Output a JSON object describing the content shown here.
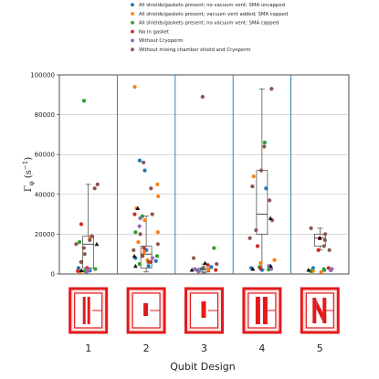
{
  "chart_data": {
    "type": "scatter",
    "ylabel": "Γ_φ (s⁻¹)",
    "ylabel_main": "Γ",
    "ylabel_sub": "φ",
    "ylabel_rest": "(s",
    "ylabel_sup": "−1",
    "ylabel_close": ")",
    "xlabel": "Qubit Design",
    "ylim": [
      0,
      100000
    ],
    "yticks": [
      0,
      20000,
      40000,
      60000,
      80000,
      100000
    ],
    "ytick_labels": [
      "0",
      "20000",
      "40000",
      "60000",
      "80000",
      "100000"
    ],
    "grid": true,
    "legend_position": "top-left",
    "categories": [
      "1",
      "2",
      "3",
      "4",
      "5"
    ],
    "series": [
      {
        "name": "All shields/gaskets present; no vacuum vent; SMA uncapped",
        "color": "#1f77b4",
        "marker": "circle",
        "points": [
          {
            "x": 1,
            "y": 2500
          },
          {
            "x": 1,
            "y": 1800
          },
          {
            "x": 1,
            "y": 3000
          },
          {
            "x": 2,
            "y": 57000
          },
          {
            "x": 2,
            "y": 52000
          },
          {
            "x": 2,
            "y": 12000
          },
          {
            "x": 2,
            "y": 8000
          },
          {
            "x": 2,
            "y": 6500
          },
          {
            "x": 2,
            "y": 4000
          },
          {
            "x": 3,
            "y": 2500
          },
          {
            "x": 3,
            "y": 1500
          },
          {
            "x": 3,
            "y": 3500
          },
          {
            "x": 4,
            "y": 43000
          },
          {
            "x": 4,
            "y": 3000
          },
          {
            "x": 4,
            "y": 2000
          },
          {
            "x": 5,
            "y": 3000
          },
          {
            "x": 5,
            "y": 2000
          },
          {
            "x": 5,
            "y": 1500
          }
        ]
      },
      {
        "name": "All shields/gaskets present; vacuum vent added; SMA capped",
        "color": "#ff7f0e",
        "marker": "circle",
        "points": [
          {
            "x": 1,
            "y": 18000
          },
          {
            "x": 1,
            "y": 2000
          },
          {
            "x": 1,
            "y": 1000
          },
          {
            "x": 2,
            "y": 94000
          },
          {
            "x": 2,
            "y": 45000
          },
          {
            "x": 2,
            "y": 39000
          },
          {
            "x": 2,
            "y": 33000
          },
          {
            "x": 2,
            "y": 27000
          },
          {
            "x": 2,
            "y": 21000
          },
          {
            "x": 2,
            "y": 16000
          },
          {
            "x": 2,
            "y": 11000
          },
          {
            "x": 2,
            "y": 7000
          },
          {
            "x": 3,
            "y": 2000
          },
          {
            "x": 3,
            "y": 1200
          },
          {
            "x": 4,
            "y": 49000
          },
          {
            "x": 4,
            "y": 7000
          },
          {
            "x": 4,
            "y": 5500
          },
          {
            "x": 5,
            "y": 1500
          },
          {
            "x": 5,
            "y": 1000
          }
        ]
      },
      {
        "name": "All shields/gaskets present; no vacuum vent; SMA capped",
        "color": "#2ca02c",
        "marker": "circle",
        "points": [
          {
            "x": 1,
            "y": 87000
          },
          {
            "x": 1,
            "y": 16000
          },
          {
            "x": 1,
            "y": 2500
          },
          {
            "x": 1,
            "y": 1500
          },
          {
            "x": 2,
            "y": 29000
          },
          {
            "x": 2,
            "y": 21000
          },
          {
            "x": 2,
            "y": 9000
          },
          {
            "x": 2,
            "y": 5000
          },
          {
            "x": 3,
            "y": 13000
          },
          {
            "x": 3,
            "y": 3000
          },
          {
            "x": 3,
            "y": 1800
          },
          {
            "x": 4,
            "y": 66000
          },
          {
            "x": 4,
            "y": 3500
          },
          {
            "x": 4,
            "y": 2200
          },
          {
            "x": 5,
            "y": 2500
          },
          {
            "x": 5,
            "y": 1500
          }
        ]
      },
      {
        "name": "No In gasket",
        "color": "#d62728",
        "marker": "circle",
        "points": [
          {
            "x": 1,
            "y": 25000
          },
          {
            "x": 1,
            "y": 3000
          },
          {
            "x": 1,
            "y": 1500
          },
          {
            "x": 2,
            "y": 30000
          },
          {
            "x": 2,
            "y": 13000
          },
          {
            "x": 2,
            "y": 6000
          },
          {
            "x": 3,
            "y": 4500
          },
          {
            "x": 3,
            "y": 2000
          },
          {
            "x": 4,
            "y": 14000
          },
          {
            "x": 4,
            "y": 3000
          },
          {
            "x": 5,
            "y": 18000
          },
          {
            "x": 5,
            "y": 12000
          },
          {
            "x": 5,
            "y": 3000
          }
        ]
      },
      {
        "name": "Without Cryoperm",
        "color": "#9467bd",
        "marker": "circle",
        "points": [
          {
            "x": 1,
            "y": 2000
          },
          {
            "x": 1,
            "y": 1000
          },
          {
            "x": 2,
            "y": 28000
          },
          {
            "x": 2,
            "y": 24000
          },
          {
            "x": 2,
            "y": 8000
          },
          {
            "x": 3,
            "y": 2500
          },
          {
            "x": 3,
            "y": 1500
          },
          {
            "x": 4,
            "y": 4000
          },
          {
            "x": 4,
            "y": 2500
          },
          {
            "x": 5,
            "y": 2500
          },
          {
            "x": 5,
            "y": 1800
          }
        ]
      },
      {
        "name": "Without mixing chamber shield and Cryoperm",
        "color": "#8c564b",
        "marker": "circle",
        "points": [
          {
            "x": 1,
            "y": 45000
          },
          {
            "x": 1,
            "y": 43000
          },
          {
            "x": 1,
            "y": 19000
          },
          {
            "x": 1,
            "y": 17000
          },
          {
            "x": 1,
            "y": 15000
          },
          {
            "x": 1,
            "y": 13000
          },
          {
            "x": 1,
            "y": 10000
          },
          {
            "x": 1,
            "y": 6000
          },
          {
            "x": 2,
            "y": 56000
          },
          {
            "x": 2,
            "y": 43000
          },
          {
            "x": 2,
            "y": 30000
          },
          {
            "x": 2,
            "y": 20000
          },
          {
            "x": 2,
            "y": 15000
          },
          {
            "x": 2,
            "y": 12000
          },
          {
            "x": 2,
            "y": 9000
          },
          {
            "x": 2,
            "y": 6000
          },
          {
            "x": 3,
            "y": 89000
          },
          {
            "x": 3,
            "y": 8000
          },
          {
            "x": 3,
            "y": 5000
          },
          {
            "x": 3,
            "y": 3000
          },
          {
            "x": 4,
            "y": 93000
          },
          {
            "x": 4,
            "y": 64000
          },
          {
            "x": 4,
            "y": 52000
          },
          {
            "x": 4,
            "y": 44000
          },
          {
            "x": 4,
            "y": 37000
          },
          {
            "x": 4,
            "y": 27000
          },
          {
            "x": 4,
            "y": 22000
          },
          {
            "x": 4,
            "y": 18000
          },
          {
            "x": 5,
            "y": 23000
          },
          {
            "x": 5,
            "y": 20000
          },
          {
            "x": 5,
            "y": 17000
          },
          {
            "x": 5,
            "y": 14000
          },
          {
            "x": 5,
            "y": 12000
          }
        ]
      },
      {
        "name": "",
        "color": "#111111",
        "marker": "triangle",
        "points": [
          {
            "x": 1,
            "y": 1800
          },
          {
            "x": 1,
            "y": 15000
          },
          {
            "x": 2,
            "y": 33000
          },
          {
            "x": 2,
            "y": 9000
          },
          {
            "x": 2,
            "y": 4000
          },
          {
            "x": 3,
            "y": 2000
          },
          {
            "x": 3,
            "y": 5500
          },
          {
            "x": 4,
            "y": 28000
          },
          {
            "x": 4,
            "y": 4000
          },
          {
            "x": 4,
            "y": 2500
          },
          {
            "x": 5,
            "y": 18000
          },
          {
            "x": 5,
            "y": 2000
          }
        ]
      }
    ],
    "boxes": [
      {
        "x": 1,
        "q1": 3000,
        "median": 15000,
        "q3": 19000,
        "whisker_low": 1000,
        "whisker_high": 45000
      },
      {
        "x": 2,
        "q1": 3000,
        "median": 10000,
        "q3": 14000,
        "whisker_low": 1000,
        "whisker_high": 29000
      },
      {
        "x": 3,
        "q1": 1000,
        "median": 2000,
        "q3": 3000,
        "whisker_low": 500,
        "whisker_high": 5000
      },
      {
        "x": 4,
        "q1": 20000,
        "median": 30000,
        "q3": 52000,
        "whisker_low": 2000,
        "whisker_high": 93000
      },
      {
        "x": 5,
        "q1": 14000,
        "median": 18000,
        "q3": 20000,
        "whisker_low": 12000,
        "whisker_high": 23000
      }
    ]
  },
  "designs": [
    {
      "label": "1",
      "icon": "qubit-design-1-icon"
    },
    {
      "label": "2",
      "icon": "qubit-design-2-icon"
    },
    {
      "label": "3",
      "icon": "qubit-design-3-icon"
    },
    {
      "label": "4",
      "icon": "qubit-design-4-icon"
    },
    {
      "label": "5",
      "icon": "qubit-design-5-icon"
    }
  ],
  "colors": {
    "divider": "#1f77b4",
    "icon": "#e31a1c",
    "grid": "#b0b0b0"
  }
}
